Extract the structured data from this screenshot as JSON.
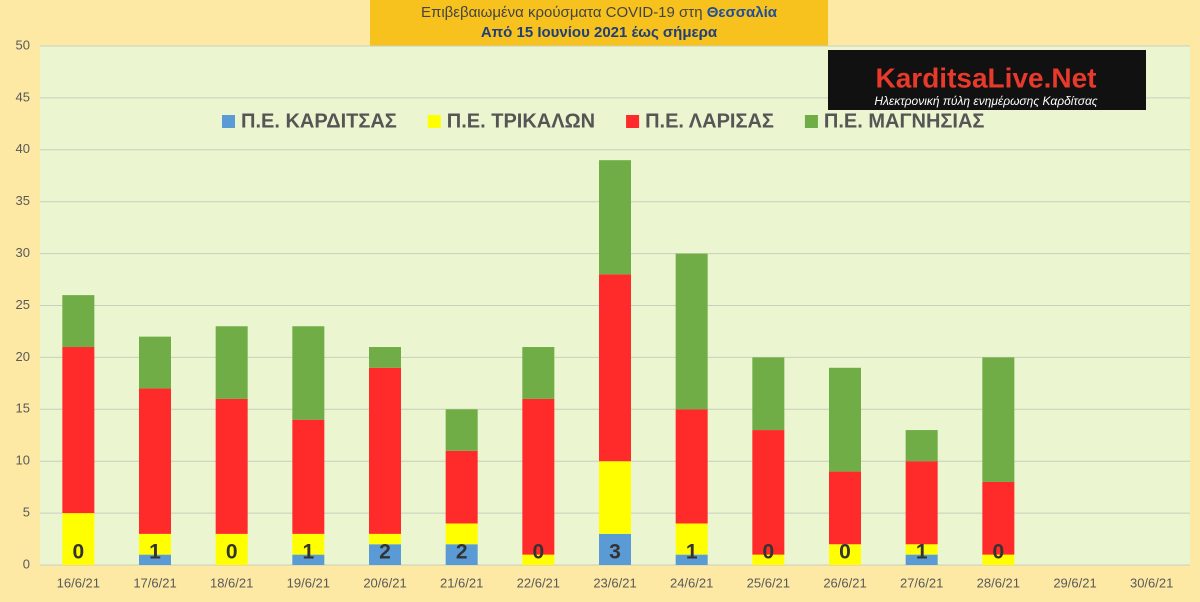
{
  "chart_data": {
    "type": "bar",
    "stacked": true,
    "title": "Επιβεβαιωμένα κρούσματα COVID-19 στη",
    "title_region": "Θεσσαλία",
    "subtitle": "Από 15 Ιουνίου 2021 έως σήμερα",
    "categories": [
      "16/6/21",
      "17/6/21",
      "18/6/21",
      "19/6/21",
      "20/6/21",
      "21/6/21",
      "22/6/21",
      "23/6/21",
      "24/6/21",
      "25/6/21",
      "26/6/21",
      "27/6/21",
      "28/6/21",
      "29/6/21",
      "30/6/21"
    ],
    "series": [
      {
        "name": "Π.Ε. ΚΑΡΔΙΤΣΑΣ",
        "color": "#5b9bd5",
        "values": [
          0,
          1,
          0,
          1,
          2,
          2,
          0,
          3,
          1,
          0,
          0,
          1,
          0,
          null,
          null
        ],
        "show_labels": true
      },
      {
        "name": "Π.Ε. ΤΡΙΚΑΛΩΝ",
        "color": "#ffff00",
        "values": [
          5,
          2,
          3,
          2,
          1,
          2,
          1,
          7,
          3,
          1,
          2,
          1,
          1,
          null,
          null
        ]
      },
      {
        "name": "Π.Ε. ΛΑΡΙΣΑΣ",
        "color": "#ff2a2a",
        "values": [
          16,
          14,
          13,
          11,
          16,
          7,
          15,
          18,
          11,
          12,
          7,
          8,
          7,
          null,
          null
        ]
      },
      {
        "name": "Π.Ε. ΜΑΓΝΗΣΙΑΣ",
        "color": "#70ad47",
        "values": [
          5,
          5,
          7,
          9,
          2,
          4,
          5,
          11,
          15,
          7,
          10,
          3,
          12,
          null,
          null
        ]
      }
    ],
    "ylim": [
      0,
      50
    ],
    "yticks": [
      0,
      5,
      10,
      15,
      20,
      25,
      30,
      35,
      40,
      45,
      50
    ],
    "grid": true,
    "legend": "top"
  },
  "logo": {
    "name": "KarditsaLive.Net",
    "tagline": "Ηλεκτρονική πύλη ενημέρωσης Καρδίτσας"
  }
}
